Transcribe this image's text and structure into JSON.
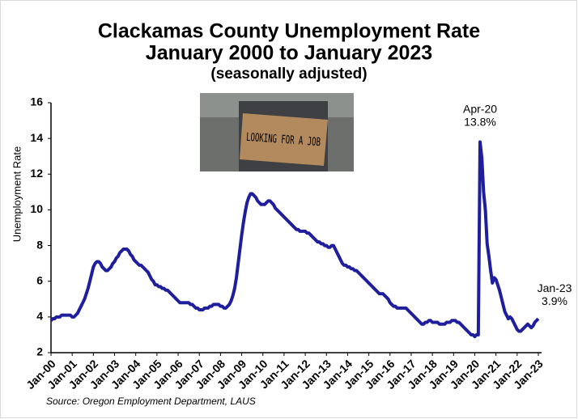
{
  "chart_data": {
    "type": "line",
    "title": "Clackamas County Unemployment Rate",
    "subtitle": "January 2000 to January 2023",
    "subtitle2": "(seasonally adjusted)",
    "y_label": "Unemployment Rate",
    "source": "Source: Oregon Employment Department, LAUS",
    "image_text": "LOOKING FOR A JOB",
    "color": "#1f1f9e",
    "ylim": [
      2,
      16
    ],
    "yticks": [
      2,
      4,
      6,
      8,
      10,
      12,
      14,
      16
    ],
    "grid": false,
    "annotations": [
      "Apr-20",
      "Jan-23"
    ],
    "categories": [
      "Jan-00",
      null,
      null,
      null,
      null,
      null,
      null,
      null,
      null,
      null,
      null,
      null,
      "Jan-01",
      null,
      null,
      null,
      null,
      null,
      null,
      null,
      null,
      null,
      null,
      null,
      "Jan-02",
      null,
      null,
      null,
      null,
      null,
      null,
      null,
      null,
      null,
      null,
      null,
      "Jan-03",
      null,
      null,
      null,
      null,
      null,
      null,
      null,
      null,
      null,
      null,
      null,
      "Jan-04",
      null,
      null,
      null,
      null,
      null,
      null,
      null,
      null,
      null,
      null,
      null,
      "Jan-05",
      null,
      null,
      null,
      null,
      null,
      null,
      null,
      null,
      null,
      null,
      null,
      "Jan-06",
      null,
      null,
      null,
      null,
      null,
      null,
      null,
      null,
      null,
      null,
      null,
      "Jan-07",
      null,
      null,
      null,
      null,
      null,
      null,
      null,
      null,
      null,
      null,
      null,
      "Jan-08",
      null,
      null,
      null,
      null,
      null,
      null,
      null,
      null,
      null,
      null,
      null,
      "Jan-09",
      null,
      null,
      null,
      null,
      null,
      null,
      null,
      null,
      null,
      null,
      null,
      "Jan-10",
      null,
      null,
      null,
      null,
      null,
      null,
      null,
      null,
      null,
      null,
      null,
      "Jan-11",
      null,
      null,
      null,
      null,
      null,
      null,
      null,
      null,
      null,
      null,
      null,
      "Jan-12",
      null,
      null,
      null,
      null,
      null,
      null,
      null,
      null,
      null,
      null,
      null,
      "Jan-13",
      null,
      null,
      null,
      null,
      null,
      null,
      null,
      null,
      null,
      null,
      null,
      "Jan-14",
      null,
      null,
      null,
      null,
      null,
      null,
      null,
      null,
      null,
      null,
      null,
      "Jan-15",
      null,
      null,
      null,
      null,
      null,
      null,
      null,
      null,
      null,
      null,
      null,
      "Jan-16",
      null,
      null,
      null,
      null,
      null,
      null,
      null,
      null,
      null,
      null,
      null,
      "Jan-17",
      null,
      null,
      null,
      null,
      null,
      null,
      null,
      null,
      null,
      null,
      null,
      "Jan-18",
      null,
      null,
      null,
      null,
      null,
      null,
      null,
      null,
      null,
      null,
      null,
      "Jan-19",
      null,
      null,
      null,
      null,
      null,
      null,
      null,
      null,
      null,
      null,
      null,
      "Jan-20",
      null,
      null,
      null,
      null,
      null,
      null,
      null,
      null,
      null,
      null,
      null,
      "Jan-21",
      null,
      null,
      null,
      null,
      null,
      null,
      null,
      null,
      null,
      null,
      null,
      "Jan-22",
      null,
      null,
      null,
      null,
      null,
      null,
      null,
      null,
      null,
      null,
      null,
      "Jan-23"
    ],
    "values": [
      3.8,
      3.9,
      3.9,
      4.0,
      4.0,
      4.0,
      4.1,
      4.1,
      4.1,
      4.1,
      4.1,
      4.1,
      4.0,
      4.0,
      4.1,
      4.2,
      4.4,
      4.6,
      4.8,
      5.0,
      5.3,
      5.6,
      6.0,
      6.4,
      6.8,
      7.0,
      7.1,
      7.1,
      7.0,
      6.8,
      6.7,
      6.6,
      6.6,
      6.7,
      6.8,
      7.0,
      7.1,
      7.3,
      7.4,
      7.6,
      7.7,
      7.8,
      7.8,
      7.8,
      7.7,
      7.5,
      7.4,
      7.2,
      7.1,
      7.0,
      6.9,
      6.9,
      6.8,
      6.7,
      6.6,
      6.5,
      6.3,
      6.1,
      6.0,
      5.8,
      5.8,
      5.7,
      5.7,
      5.6,
      5.6,
      5.5,
      5.5,
      5.4,
      5.3,
      5.2,
      5.1,
      5.0,
      4.9,
      4.8,
      4.8,
      4.8,
      4.8,
      4.8,
      4.8,
      4.7,
      4.7,
      4.6,
      4.5,
      4.5,
      4.4,
      4.4,
      4.4,
      4.5,
      4.5,
      4.5,
      4.6,
      4.6,
      4.7,
      4.7,
      4.7,
      4.7,
      4.6,
      4.6,
      4.5,
      4.5,
      4.6,
      4.7,
      4.9,
      5.2,
      5.6,
      6.2,
      7.0,
      7.8,
      8.6,
      9.3,
      9.9,
      10.4,
      10.7,
      10.9,
      10.9,
      10.8,
      10.7,
      10.5,
      10.4,
      10.3,
      10.3,
      10.3,
      10.4,
      10.5,
      10.5,
      10.4,
      10.3,
      10.1,
      10.0,
      9.9,
      9.8,
      9.7,
      9.6,
      9.5,
      9.4,
      9.3,
      9.2,
      9.1,
      9.0,
      8.9,
      8.9,
      8.8,
      8.8,
      8.8,
      8.8,
      8.7,
      8.7,
      8.6,
      8.5,
      8.4,
      8.3,
      8.2,
      8.2,
      8.1,
      8.1,
      8.0,
      8.0,
      7.9,
      7.9,
      8.0,
      8.0,
      7.8,
      7.6,
      7.4,
      7.2,
      7.0,
      6.9,
      6.9,
      6.8,
      6.8,
      6.7,
      6.7,
      6.6,
      6.6,
      6.5,
      6.4,
      6.3,
      6.2,
      6.1,
      6.0,
      5.9,
      5.8,
      5.7,
      5.6,
      5.5,
      5.4,
      5.3,
      5.3,
      5.3,
      5.2,
      5.1,
      5.0,
      4.8,
      4.7,
      4.6,
      4.6,
      4.5,
      4.5,
      4.5,
      4.5,
      4.5,
      4.5,
      4.4,
      4.3,
      4.2,
      4.1,
      4.0,
      3.9,
      3.8,
      3.7,
      3.6,
      3.6,
      3.7,
      3.7,
      3.8,
      3.8,
      3.7,
      3.7,
      3.7,
      3.7,
      3.6,
      3.6,
      3.6,
      3.6,
      3.7,
      3.7,
      3.7,
      3.8,
      3.8,
      3.8,
      3.7,
      3.7,
      3.6,
      3.5,
      3.4,
      3.3,
      3.2,
      3.1,
      3.0,
      3.0,
      2.9,
      3.0,
      3.0,
      13.8,
      12.9,
      11.0,
      10.0,
      8.1,
      7.4,
      6.6,
      5.9,
      6.2,
      6.1,
      5.8,
      5.5,
      5.1,
      4.7,
      4.3,
      4.1,
      3.9,
      4.0,
      3.9,
      3.7,
      3.5,
      3.3,
      3.2,
      3.2,
      3.3,
      3.4,
      3.5,
      3.6,
      3.5,
      3.4,
      3.5,
      3.7,
      3.8,
      3.9
    ],
    "value_labels": [
      null,
      null,
      null,
      null,
      null,
      null,
      null,
      null,
      null,
      null,
      null,
      null,
      null,
      null,
      null,
      null,
      null,
      null,
      null,
      null,
      null,
      null,
      null,
      null,
      null,
      null,
      null,
      null,
      null,
      null,
      null,
      null,
      null,
      null,
      null,
      null,
      null,
      null,
      null,
      null,
      null,
      null,
      null,
      null,
      null,
      null,
      null,
      null,
      null,
      null,
      null,
      null,
      null,
      null,
      null,
      null,
      null,
      null,
      null,
      null,
      null,
      null,
      null,
      null,
      null,
      null,
      null,
      null,
      null,
      null,
      null,
      null,
      null,
      null,
      null,
      null,
      null,
      null,
      null,
      null,
      null,
      null,
      null,
      null,
      null,
      null,
      null,
      null,
      null,
      null,
      null,
      null,
      null,
      null,
      null,
      null,
      null,
      null,
      null,
      null,
      null,
      null,
      null,
      null,
      null,
      null,
      null,
      null,
      null,
      null,
      null,
      null,
      null,
      null,
      null,
      null,
      null,
      null,
      null,
      null,
      null,
      null,
      null,
      null,
      null,
      null,
      null,
      null,
      null,
      null,
      null,
      null,
      null,
      null,
      null,
      null,
      null,
      null,
      null,
      null,
      null,
      null,
      null,
      null,
      null,
      null,
      null,
      null,
      null,
      null,
      null,
      null,
      null,
      null,
      null,
      null,
      null,
      null,
      null,
      null,
      null,
      null,
      null,
      null,
      null,
      null,
      null,
      null,
      null,
      null,
      null,
      null,
      null,
      null,
      null,
      null,
      null,
      null,
      null,
      null,
      null,
      null,
      null,
      null,
      null,
      null,
      null,
      null,
      null,
      null,
      null,
      null,
      null,
      null,
      null,
      null,
      null,
      null,
      null,
      null,
      null,
      null,
      null,
      null,
      null,
      null,
      null,
      null,
      null,
      null,
      null,
      null,
      null,
      null,
      null,
      null,
      null,
      null,
      null,
      null,
      null,
      null,
      null,
      null,
      null,
      null,
      null,
      null,
      null,
      null,
      null,
      null,
      null,
      null,
      null,
      null,
      null,
      null,
      null,
      null,
      null,
      null,
      null,
      "13.8%",
      null,
      null,
      null,
      null,
      null,
      null,
      null,
      null,
      null,
      null,
      null,
      null,
      null,
      null,
      null,
      null,
      null,
      null,
      null,
      null,
      null,
      null,
      null,
      null,
      null,
      null,
      null,
      null,
      null,
      null,
      null,
      null,
      "3.9%"
    ]
  }
}
